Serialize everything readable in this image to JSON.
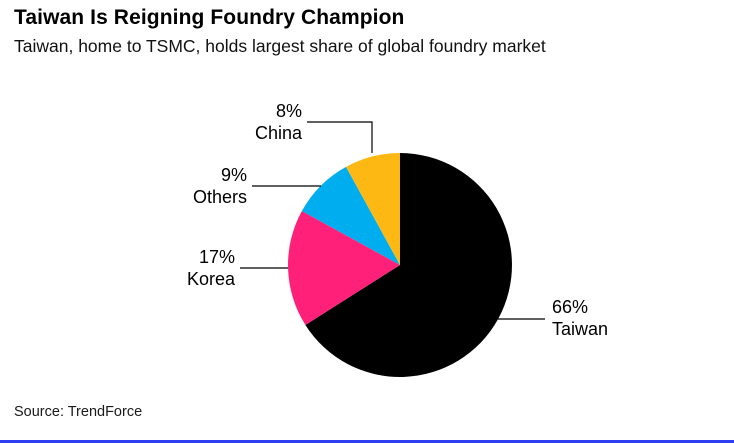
{
  "header": {
    "title": "Taiwan Is Reigning Foundry Champion",
    "subtitle": "Taiwan, home to TSMC, holds largest share of global foundry market"
  },
  "source": "Source: TrendForce",
  "theme": {
    "divider_color": "#2f3ef0",
    "text_color": "#000000",
    "leader_line_color": "#000000"
  },
  "chart_data": {
    "type": "pie",
    "title": "Taiwan Is Reigning Foundry Champion",
    "subtitle": "Taiwan, home to TSMC, holds largest share of global foundry market",
    "labels": [
      "Taiwan",
      "Korea",
      "Others",
      "China"
    ],
    "values": [
      66,
      17,
      9,
      8
    ],
    "colors": [
      "#000000",
      "#ff2079",
      "#00aeef",
      "#fdb813"
    ],
    "start_angle_deg": 0,
    "direction": "clockwise",
    "legend_position": "callout-labels",
    "source": "Source: TrendForce",
    "callouts": [
      {
        "pct": "66%",
        "label": "Taiwan"
      },
      {
        "pct": "17%",
        "label": "Korea"
      },
      {
        "pct": "9%",
        "label": "Others"
      },
      {
        "pct": "8%",
        "label": "China"
      }
    ]
  }
}
